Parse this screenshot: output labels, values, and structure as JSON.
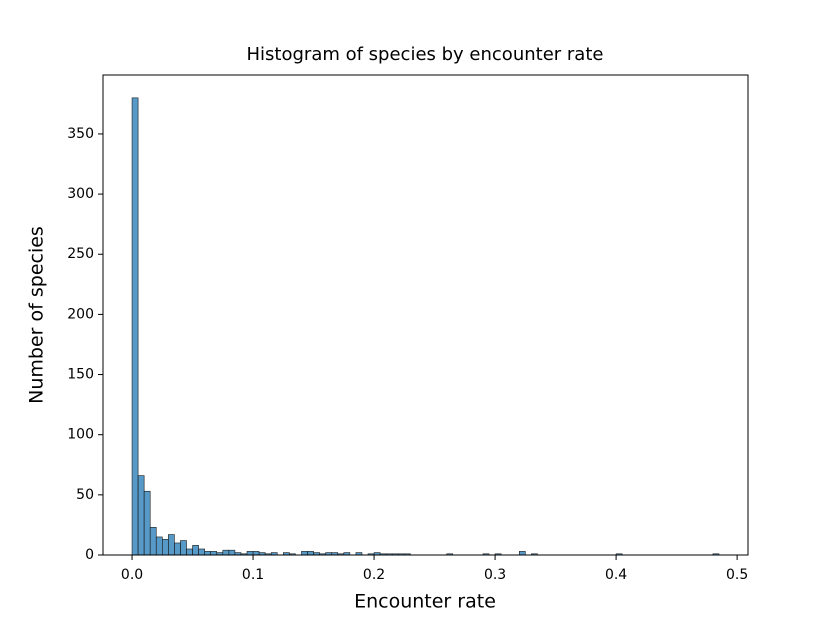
{
  "chart_data": {
    "type": "histogram",
    "title": "Histogram of species by encounter rate",
    "x_label": "Encounter rate",
    "y_label": "Number of species",
    "bins": [
      0,
      0.005,
      0.01,
      0.015,
      0.02,
      0.025,
      0.03,
      0.035,
      0.04,
      0.045,
      0.05,
      0.055,
      0.06,
      0.065,
      0.07,
      0.075,
      0.08,
      0.085,
      0.09,
      0.095,
      0.1,
      0.105,
      0.11,
      0.115,
      0.12,
      0.125,
      0.13,
      0.135,
      0.14,
      0.145,
      0.15,
      0.155,
      0.16,
      0.165,
      0.17,
      0.175,
      0.18,
      0.185,
      0.19,
      0.195,
      0.2,
      0.205,
      0.21,
      0.215,
      0.22,
      0.225,
      0.23,
      0.235,
      0.24,
      0.245,
      0.25,
      0.255,
      0.26,
      0.265,
      0.27,
      0.275,
      0.28,
      0.285,
      0.29,
      0.295,
      0.3,
      0.305,
      0.31,
      0.315,
      0.32,
      0.325,
      0.33,
      0.335,
      0.34,
      0.345,
      0.35,
      0.355,
      0.36,
      0.365,
      0.37,
      0.375,
      0.38,
      0.385,
      0.39,
      0.395,
      0.4,
      0.405,
      0.41,
      0.415,
      0.42,
      0.425,
      0.43,
      0.435,
      0.44,
      0.445,
      0.45,
      0.455,
      0.46,
      0.465,
      0.47,
      0.475,
      0.48,
      0.485
    ],
    "values": [
      380,
      66,
      53,
      23,
      15,
      13,
      17,
      10,
      12,
      5,
      8,
      5,
      3,
      3,
      2,
      4,
      4,
      2,
      1,
      3,
      3,
      2,
      1,
      2,
      0,
      2,
      1,
      0,
      3,
      3,
      2,
      1,
      2,
      2,
      1,
      2,
      0,
      2,
      0,
      1,
      2,
      1,
      1,
      1,
      1,
      1,
      0,
      0,
      0,
      0,
      0,
      0,
      1,
      0,
      0,
      0,
      0,
      0,
      1,
      0,
      1,
      0,
      0,
      0,
      3,
      0,
      1,
      0,
      0,
      0,
      0,
      0,
      0,
      0,
      0,
      0,
      0,
      0,
      0,
      0,
      1,
      0,
      0,
      0,
      0,
      0,
      0,
      0,
      0,
      0,
      0,
      0,
      0,
      0,
      0,
      0,
      1
    ],
    "color": "#1f77b4",
    "edge_color": "#1a1a1a",
    "xlim": [
      -0.024,
      0.509
    ],
    "xticks": [
      {
        "value": 0,
        "label": "0.0"
      },
      0.1,
      0.2,
      0.3,
      0.4,
      0.5
    ],
    "ylim": [
      0,
      399
    ],
    "yticks": [
      0,
      50,
      100,
      150,
      200,
      250,
      300,
      350
    ]
  }
}
